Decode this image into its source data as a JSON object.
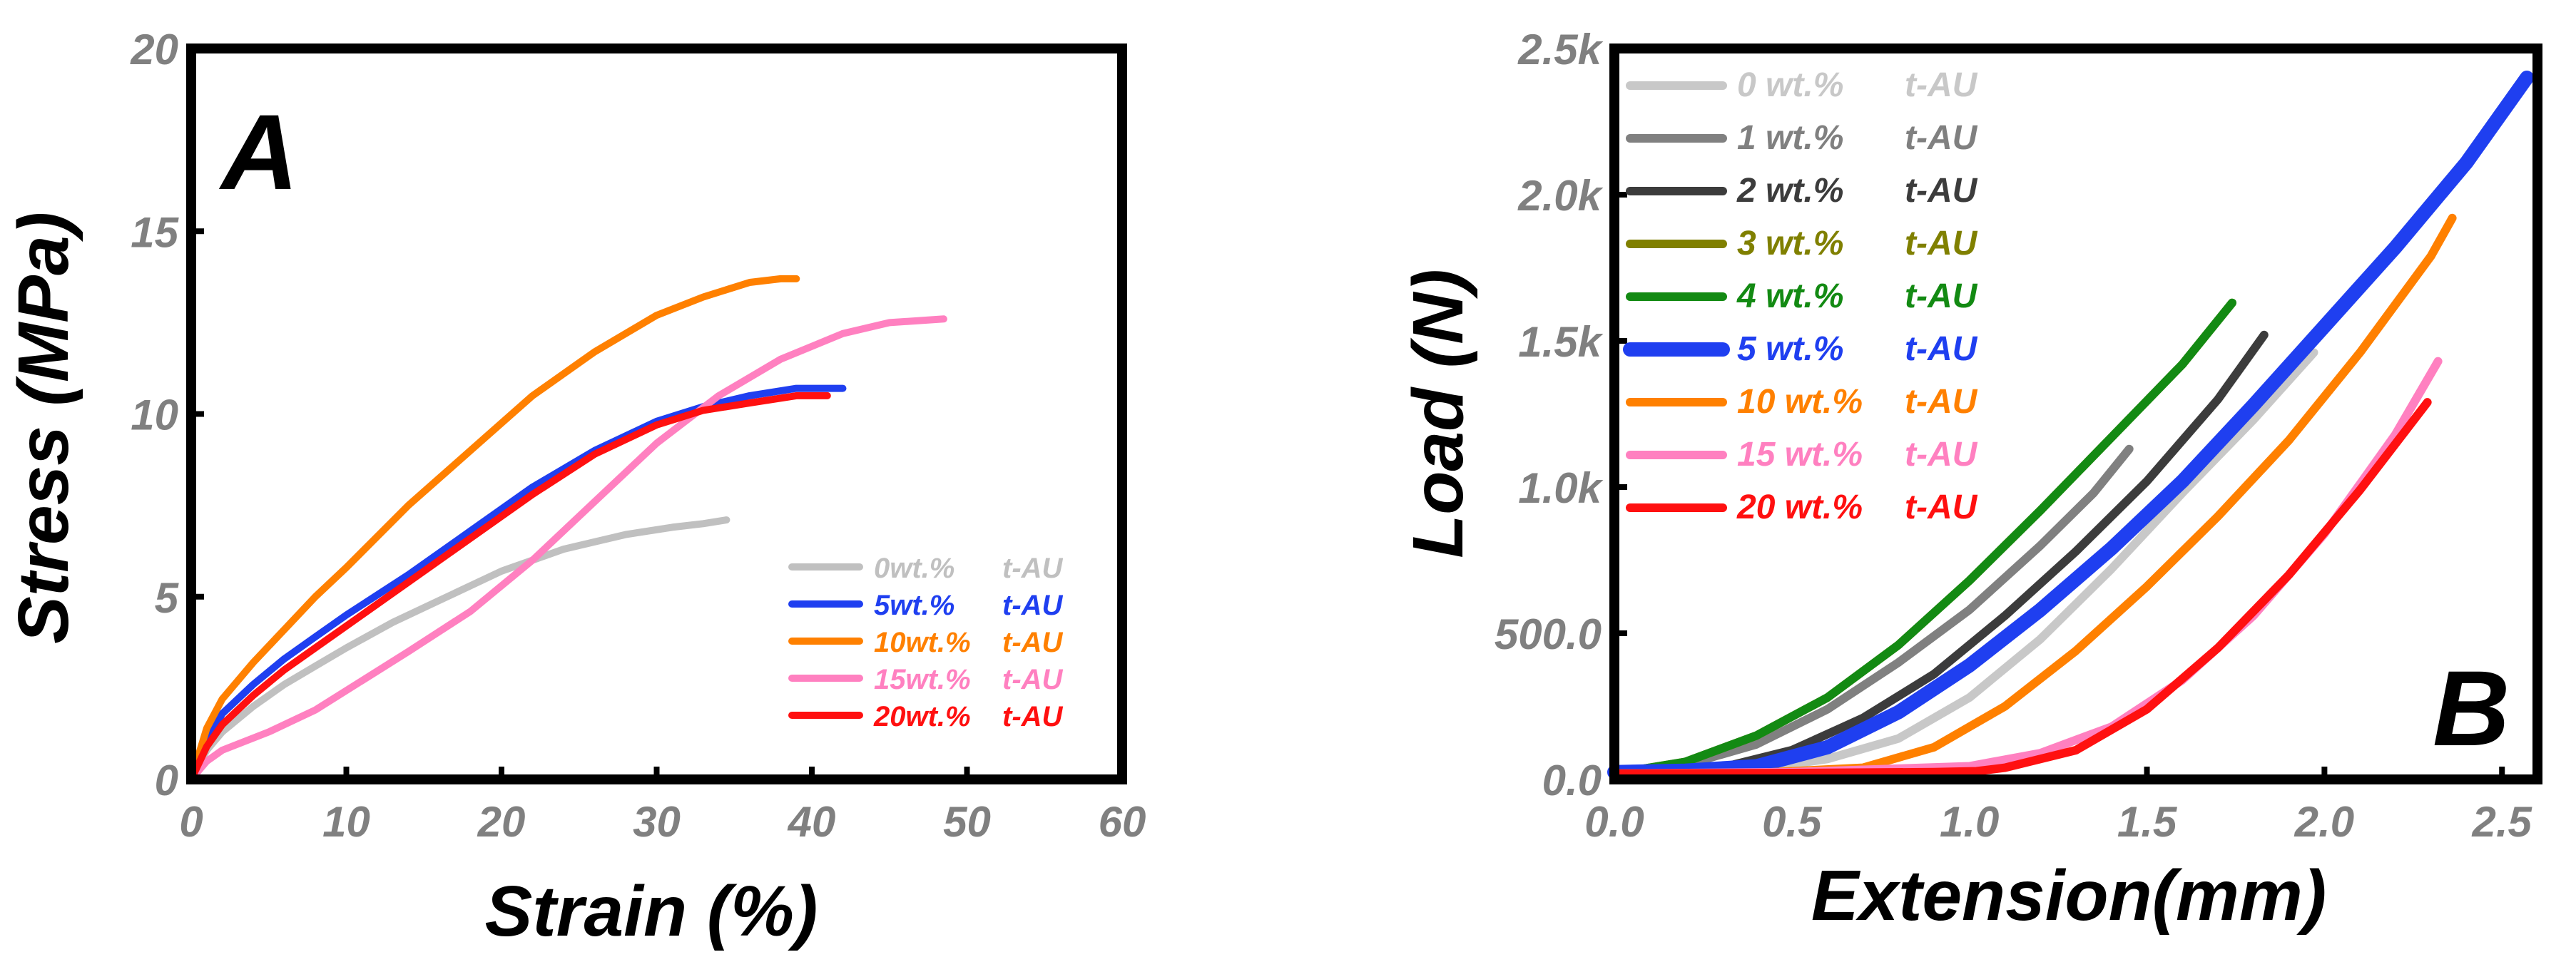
{
  "figure": {
    "chart_data": [
      {
        "type": "line",
        "panel_label": "A",
        "title": "",
        "xlabel": "Strain (%)",
        "ylabel": "Stress (MPa)",
        "xlim": [
          0,
          60
        ],
        "ylim": [
          0,
          20
        ],
        "xticks": [
          0,
          10,
          20,
          30,
          40,
          50,
          60
        ],
        "yticks": [
          0,
          5,
          10,
          15,
          20
        ],
        "xtick_labels": [
          "0",
          "10",
          "20",
          "30",
          "40",
          "50",
          "60"
        ],
        "ytick_labels": [
          "0",
          "5",
          "10",
          "15",
          "20"
        ],
        "grid": false,
        "legend_position": "bottom-right",
        "series": [
          {
            "name": "0wt.% t-AU",
            "legend_label": "0wt.%",
            "legend_suffix": "t-AU",
            "color": "#c0c0c0",
            "x": [
              0,
              1,
              2,
              4,
              6,
              8,
              10,
              13,
              16,
              20,
              24,
              28,
              31,
              33,
              34.5
            ],
            "y": [
              0,
              0.8,
              1.3,
              2.0,
              2.6,
              3.1,
              3.6,
              4.3,
              4.9,
              5.7,
              6.3,
              6.7,
              6.9,
              7.0,
              7.1
            ]
          },
          {
            "name": "5wt.% t-AU",
            "legend_label": "5wt.%",
            "legend_suffix": "t-AU",
            "color": "#1f3ff0",
            "x": [
              0,
              1,
              2,
              4,
              6,
              8,
              10,
              14,
              18,
              22,
              26,
              30,
              33,
              36,
              39,
              42
            ],
            "y": [
              0,
              1.0,
              1.8,
              2.6,
              3.3,
              3.9,
              4.5,
              5.6,
              6.8,
              8.0,
              9.0,
              9.8,
              10.2,
              10.5,
              10.7,
              10.7
            ]
          },
          {
            "name": "10wt.% t-AU",
            "legend_label": "10wt.%",
            "legend_suffix": "t-AU",
            "color": "#ff8000",
            "x": [
              0,
              1,
              2,
              4,
              6,
              8,
              10,
              14,
              18,
              22,
              26,
              30,
              33,
              36,
              38,
              39
            ],
            "y": [
              0,
              1.4,
              2.2,
              3.2,
              4.1,
              5.0,
              5.8,
              7.5,
              9.0,
              10.5,
              11.7,
              12.7,
              13.2,
              13.6,
              13.7,
              13.7
            ]
          },
          {
            "name": "15wt.% t-AU",
            "legend_label": "15wt.%",
            "legend_suffix": "t-AU",
            "color": "#ff80c0",
            "x": [
              0,
              1,
              2,
              5,
              8,
              11,
              14,
              18,
              22,
              26,
              30,
              34,
              38,
              42,
              45,
              48.5
            ],
            "y": [
              0,
              0.5,
              0.8,
              1.3,
              1.9,
              2.7,
              3.5,
              4.6,
              6.0,
              7.6,
              9.2,
              10.5,
              11.5,
              12.2,
              12.5,
              12.6
            ]
          },
          {
            "name": "20wt.% t-AU",
            "legend_label": "20wt.%",
            "legend_suffix": "t-AU",
            "color": "#ff1010",
            "x": [
              0,
              1,
              2,
              4,
              6,
              8,
              10,
              14,
              18,
              22,
              26,
              30,
              33,
              36,
              39,
              41
            ],
            "y": [
              0,
              0.9,
              1.5,
              2.3,
              3.0,
              3.6,
              4.2,
              5.4,
              6.6,
              7.8,
              8.9,
              9.7,
              10.1,
              10.3,
              10.5,
              10.5
            ]
          }
        ]
      },
      {
        "type": "line",
        "panel_label": "B",
        "title": "",
        "xlabel": "Extension(mm)",
        "ylabel": "Load (N)",
        "xlim": [
          0,
          2.6
        ],
        "ylim": [
          0,
          2500
        ],
        "xticks": [
          0,
          0.5,
          1.0,
          1.5,
          2.0,
          2.5
        ],
        "yticks": [
          0,
          500,
          1000,
          1500,
          2000,
          2500
        ],
        "xtick_labels": [
          "0.0",
          "0.5",
          "1.0",
          "1.5",
          "2.0",
          "2.5"
        ],
        "ytick_labels": [
          "0.0",
          "500.0",
          "1.0k",
          "1.5k",
          "2.0k",
          "2.5k"
        ],
        "grid": false,
        "legend_position": "top-left",
        "series": [
          {
            "name": "0 wt.% t-AU",
            "legend_label": "0 wt.%",
            "legend_suffix": "t-AU",
            "color": "#c8c8c8",
            "x": [
              0,
              0.2,
              0.4,
              0.6,
              0.8,
              1.0,
              1.2,
              1.4,
              1.6,
              1.8,
              1.97
            ],
            "y": [
              20,
              22,
              35,
              70,
              140,
              280,
              480,
              720,
              980,
              1230,
              1460
            ]
          },
          {
            "name": "1 wt.% t-AU",
            "legend_label": "1 wt.%",
            "legend_suffix": "t-AU",
            "color": "#808080",
            "x": [
              0,
              0.2,
              0.4,
              0.6,
              0.8,
              1.0,
              1.2,
              1.35,
              1.45
            ],
            "y": [
              20,
              50,
              120,
              240,
              400,
              580,
              800,
              980,
              1130
            ]
          },
          {
            "name": "2 wt.% t-AU",
            "legend_label": "2 wt.%",
            "legend_suffix": "t-AU",
            "color": "#3c3c3c",
            "x": [
              0,
              0.3,
              0.5,
              0.7,
              0.9,
              1.1,
              1.3,
              1.5,
              1.7,
              1.83
            ],
            "y": [
              20,
              40,
              100,
              210,
              360,
              560,
              780,
              1020,
              1300,
              1520
            ]
          },
          {
            "name": "3 wt.% t-AU",
            "legend_label": "3 wt.%",
            "legend_suffix": "t-AU",
            "color": "#808000",
            "x": [
              0,
              0.2,
              0.4,
              0.6,
              0.8,
              1.0,
              1.2,
              1.4,
              1.6,
              1.74
            ],
            "y": [
              20,
              60,
              150,
              280,
              460,
              680,
              920,
              1170,
              1420,
              1630
            ]
          },
          {
            "name": "4 wt.% t-AU",
            "legend_label": "4 wt.%",
            "legend_suffix": "t-AU",
            "color": "#138a13",
            "x": [
              0,
              0.2,
              0.4,
              0.6,
              0.8,
              1.0,
              1.2,
              1.4,
              1.6,
              1.74
            ],
            "y": [
              20,
              60,
              150,
              280,
              460,
              680,
              920,
              1170,
              1420,
              1630
            ]
          },
          {
            "name": "5 wt.% t-AU",
            "legend_label": "5 wt.%",
            "legend_suffix": "t-AU",
            "color": "#1f3ff0",
            "x": [
              0,
              0.2,
              0.4,
              0.6,
              0.8,
              1.0,
              1.2,
              1.4,
              1.6,
              1.8,
              2.0,
              2.2,
              2.4,
              2.57
            ],
            "y": [
              25,
              30,
              45,
              110,
              230,
              390,
              580,
              790,
              1020,
              1280,
              1550,
              1820,
              2110,
              2400
            ]
          },
          {
            "name": "10 wt.% t-AU",
            "legend_label": "10 wt.%",
            "legend_suffix": "t-AU",
            "color": "#ff8000",
            "x": [
              0,
              0.4,
              0.7,
              0.9,
              1.1,
              1.3,
              1.5,
              1.7,
              1.9,
              2.1,
              2.3,
              2.36
            ],
            "y": [
              20,
              22,
              40,
              110,
              250,
              440,
              660,
              900,
              1160,
              1460,
              1790,
              1920
            ]
          },
          {
            "name": "15 wt.% t-AU",
            "legend_label": "15 wt.%",
            "legend_suffix": "t-AU",
            "color": "#ff80c0",
            "x": [
              0,
              0.5,
              1.0,
              1.2,
              1.4,
              1.6,
              1.8,
              2.0,
              2.2,
              2.32
            ],
            "y": [
              20,
              25,
              45,
              90,
              180,
              340,
              560,
              840,
              1180,
              1430
            ]
          },
          {
            "name": "20 wt.% t-AU",
            "legend_label": "20 wt.%",
            "legend_suffix": "t-AU",
            "color": "#ff1010",
            "x": [
              0,
              0.5,
              0.9,
              1.02,
              1.1,
              1.3,
              1.5,
              1.7,
              1.9,
              2.1,
              2.29
            ],
            "y": [
              20,
              22,
              25,
              28,
              40,
              100,
              240,
              450,
              700,
              990,
              1290
            ]
          }
        ]
      }
    ]
  }
}
